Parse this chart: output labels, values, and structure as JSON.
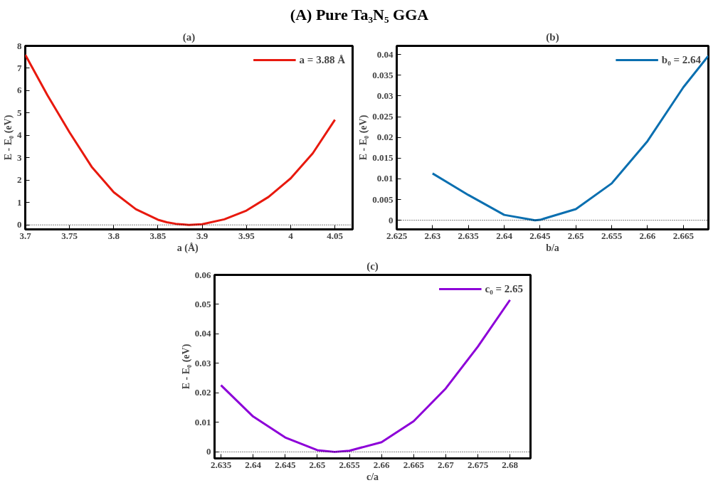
{
  "chart_data": [
    {
      "type": "line",
      "title": "(a)",
      "annotations": [
        "(A) Pure Ta₃N₅ GGA"
      ],
      "xlabel": "a  (Å)",
      "ylabel": "E - E₀ (eV)",
      "xlim": [
        3.7,
        4.07
      ],
      "ylim": [
        -0.2,
        8
      ],
      "xticks": [
        3.7,
        3.75,
        3.8,
        3.85,
        3.9,
        3.95,
        4,
        4.05
      ],
      "yticks": [
        0,
        1,
        2,
        3,
        4,
        5,
        6,
        7,
        8
      ],
      "grid": false,
      "legend": "top right",
      "series": [
        {
          "name": "a = 3.88 Å",
          "color": "#e8190e",
          "x": [
            3.7,
            3.725,
            3.75,
            3.775,
            3.8,
            3.825,
            3.85,
            3.86,
            3.87,
            3.885,
            3.9,
            3.925,
            3.95,
            3.975,
            4.0,
            4.025,
            4.05
          ],
          "values": [
            7.6,
            5.8,
            4.14,
            2.6,
            1.46,
            0.7,
            0.23,
            0.12,
            0.05,
            0,
            0.03,
            0.25,
            0.64,
            1.25,
            2.08,
            3.2,
            4.7
          ]
        }
      ],
      "ref_lines": [
        {
          "axis": "y",
          "value": 0,
          "color": "#000000",
          "line_style": "dotted"
        }
      ]
    },
    {
      "type": "line",
      "title": "(b)",
      "xlabel": "b/a",
      "ylabel": "E - E₀ (eV)",
      "xlim": [
        2.625,
        2.6685
      ],
      "ylim": [
        -0.0022,
        0.0421
      ],
      "xticks": [
        2.625,
        2.63,
        2.635,
        2.64,
        2.645,
        2.65,
        2.655,
        2.66,
        2.665
      ],
      "yticks": [
        0,
        0.005,
        0.01,
        0.015,
        0.02,
        0.025,
        0.03,
        0.035,
        0.04
      ],
      "grid": false,
      "legend": "top right",
      "series": [
        {
          "name": "b₀ = 2.64",
          "color": "#0a6fb0",
          "x": [
            2.63,
            2.635,
            2.64,
            2.6443,
            2.645,
            2.65,
            2.655,
            2.66,
            2.665,
            2.6685
          ],
          "values": [
            0.0113,
            0.0061,
            0.0013,
            0,
            0.0001,
            0.0027,
            0.0089,
            0.0191,
            0.0321,
            0.0397
          ]
        }
      ],
      "ref_lines": [
        {
          "axis": "y",
          "value": 0,
          "color": "#000000",
          "line_style": "dotted"
        }
      ]
    },
    {
      "type": "line",
      "title": "(c)",
      "xlabel": "c/a",
      "ylabel": "E - E₀ (eV)",
      "xlim": [
        2.634,
        2.6832
      ],
      "ylim": [
        -0.0022,
        0.06
      ],
      "xticks": [
        2.635,
        2.64,
        2.645,
        2.65,
        2.655,
        2.66,
        2.665,
        2.67,
        2.675,
        2.68
      ],
      "yticks": [
        0,
        0.01,
        0.02,
        0.03,
        0.04,
        0.05,
        0.06
      ],
      "grid": false,
      "legend": "top right",
      "series": [
        {
          "name": "c₀ = 2.65",
          "color": "#8d00d8",
          "x": [
            2.635,
            2.64,
            2.645,
            2.65,
            2.6527,
            2.655,
            2.66,
            2.665,
            2.67,
            2.675,
            2.68
          ],
          "values": [
            0.0226,
            0.012,
            0.0049,
            0.0006,
            0,
            0.0004,
            0.0033,
            0.0104,
            0.0215,
            0.0357,
            0.0515
          ]
        }
      ],
      "ref_lines": [
        {
          "axis": "y",
          "value": 0,
          "color": "#000000",
          "line_style": "dotted"
        }
      ]
    }
  ]
}
